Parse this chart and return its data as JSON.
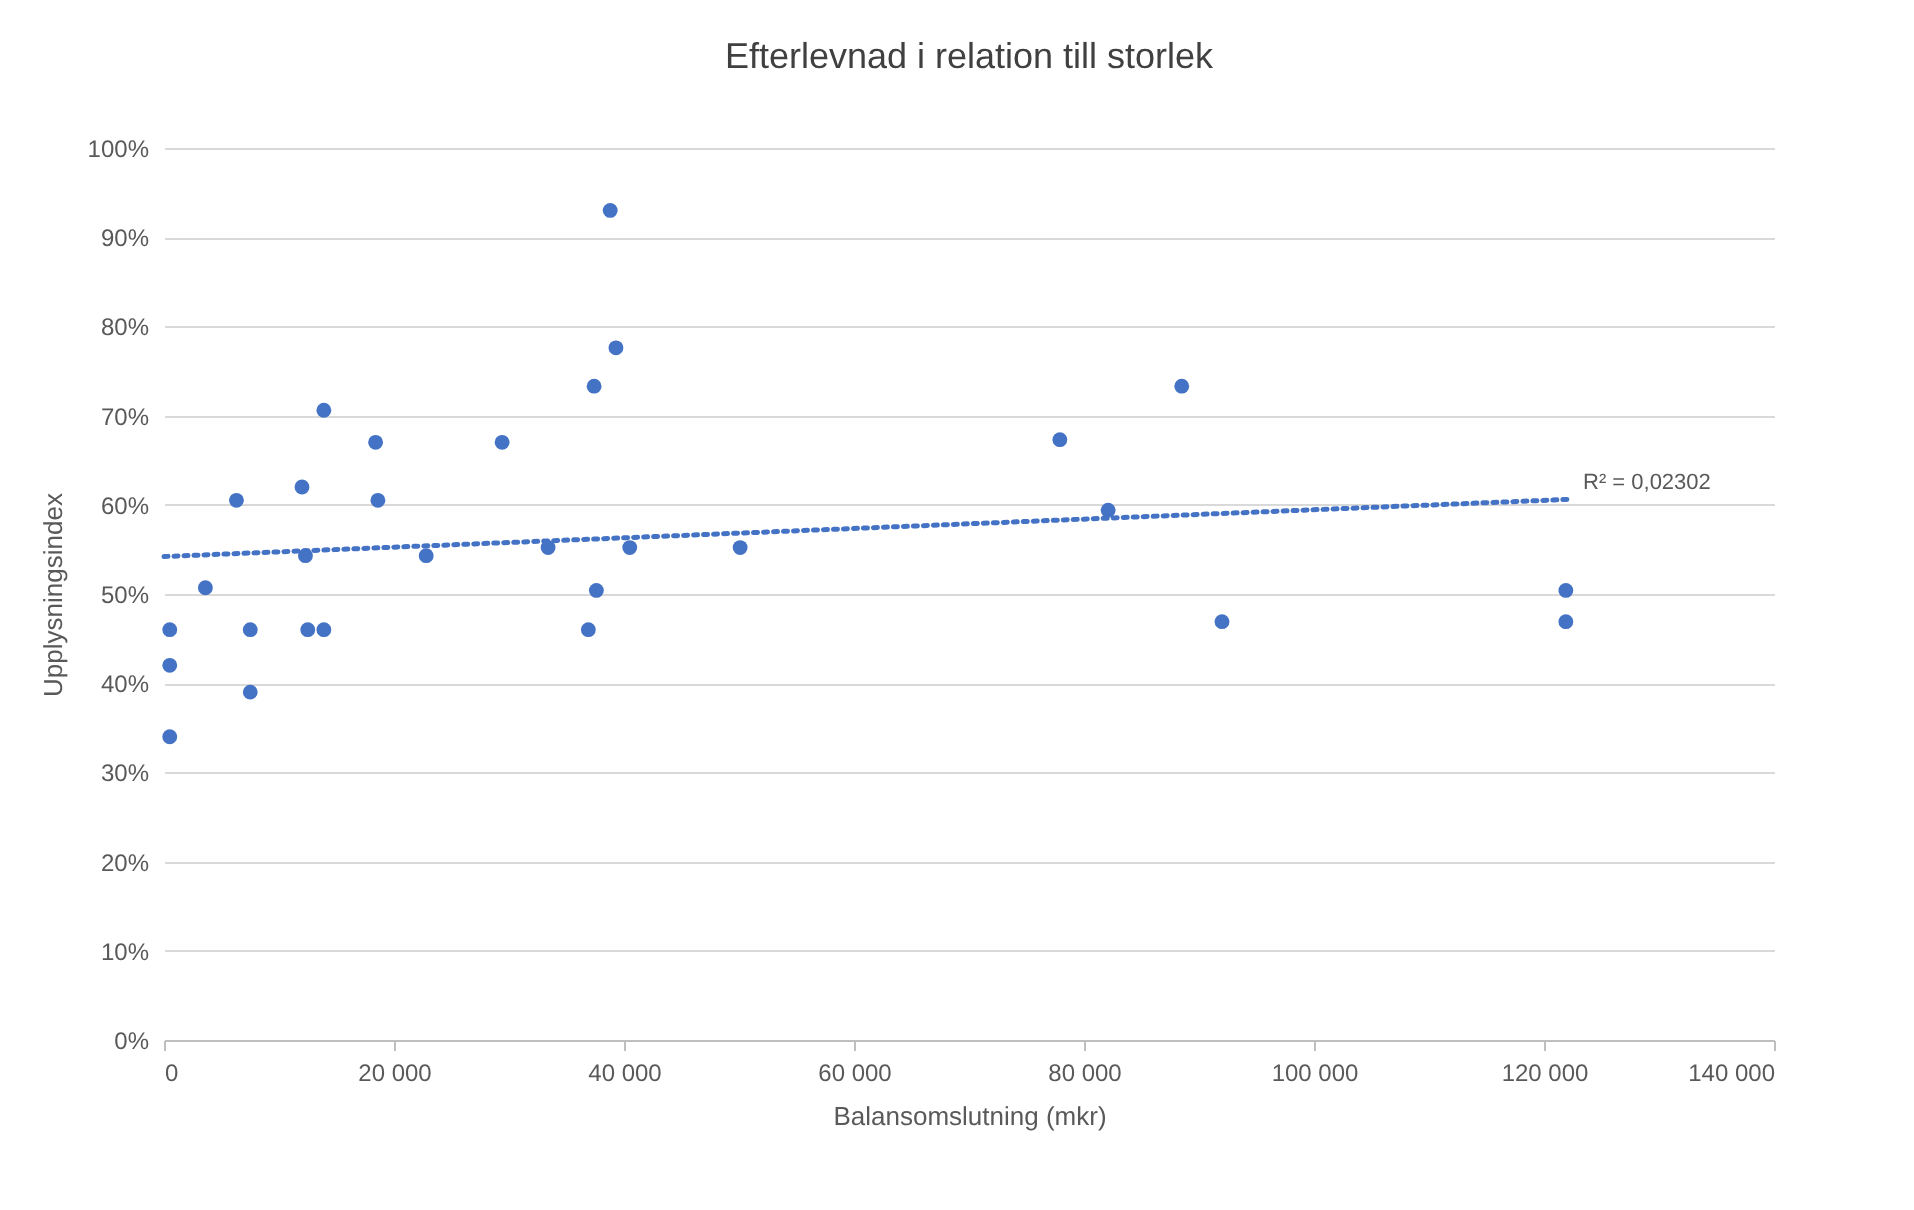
{
  "chart_data": {
    "type": "scatter",
    "title": "Efterlevnad i relation till storlek",
    "xlabel": "Balansomslutning  (mkr)",
    "ylabel": "Upplysningsindex",
    "xlim": [
      0,
      140000
    ],
    "ylim": [
      0,
      100
    ],
    "xticks": [
      {
        "value": 0,
        "label": "0"
      },
      {
        "value": 20000,
        "label": "20 000"
      },
      {
        "value": 40000,
        "label": "40 000"
      },
      {
        "value": 60000,
        "label": "60 000"
      },
      {
        "value": 80000,
        "label": "80 000"
      },
      {
        "value": 100000,
        "label": "100 000"
      },
      {
        "value": 120000,
        "label": "120 000"
      },
      {
        "value": 140000,
        "label": "140 000"
      }
    ],
    "yticks": [
      {
        "value": 0,
        "label": "0%"
      },
      {
        "value": 10,
        "label": "10%"
      },
      {
        "value": 20,
        "label": "20%"
      },
      {
        "value": 30,
        "label": "30%"
      },
      {
        "value": 40,
        "label": "40%"
      },
      {
        "value": 50,
        "label": "50%"
      },
      {
        "value": 60,
        "label": "60%"
      },
      {
        "value": 70,
        "label": "70%"
      },
      {
        "value": 80,
        "label": "80%"
      },
      {
        "value": 90,
        "label": "90%"
      },
      {
        "value": 100,
        "label": "100%"
      }
    ],
    "grid": "y",
    "series": [
      {
        "marker": "circle",
        "color": "#4472c4",
        "x": [
          500,
          500,
          500,
          3600,
          6300,
          7500,
          7500,
          12000,
          12300,
          12500,
          13900,
          13900,
          18400,
          18600,
          22800,
          29400,
          33400,
          36900,
          37400,
          37600,
          38800,
          39300,
          40500,
          50100,
          77900,
          82100,
          88500,
          92000,
          121900,
          121900
        ],
        "values": [
          46,
          42,
          34,
          50.7,
          60.5,
          46,
          39,
          62,
          54.3,
          46,
          46,
          70.6,
          67,
          60.5,
          54.3,
          67,
          55.2,
          46,
          73.3,
          50.4,
          93,
          77.6,
          55.2,
          55.2,
          67.3,
          59.4,
          73.3,
          46.9,
          50.4,
          46.9
        ]
      },
      {
        "type": "line",
        "marker": "none",
        "color": "#4472c4",
        "line_style": "dotted",
        "x": [
          0,
          122000
        ],
        "values": [
          54.2,
          60.6
        ]
      }
    ],
    "annotations": [
      {
        "text": "R² = 0,02302",
        "x": 122000,
        "y": 60.6
      }
    ]
  }
}
